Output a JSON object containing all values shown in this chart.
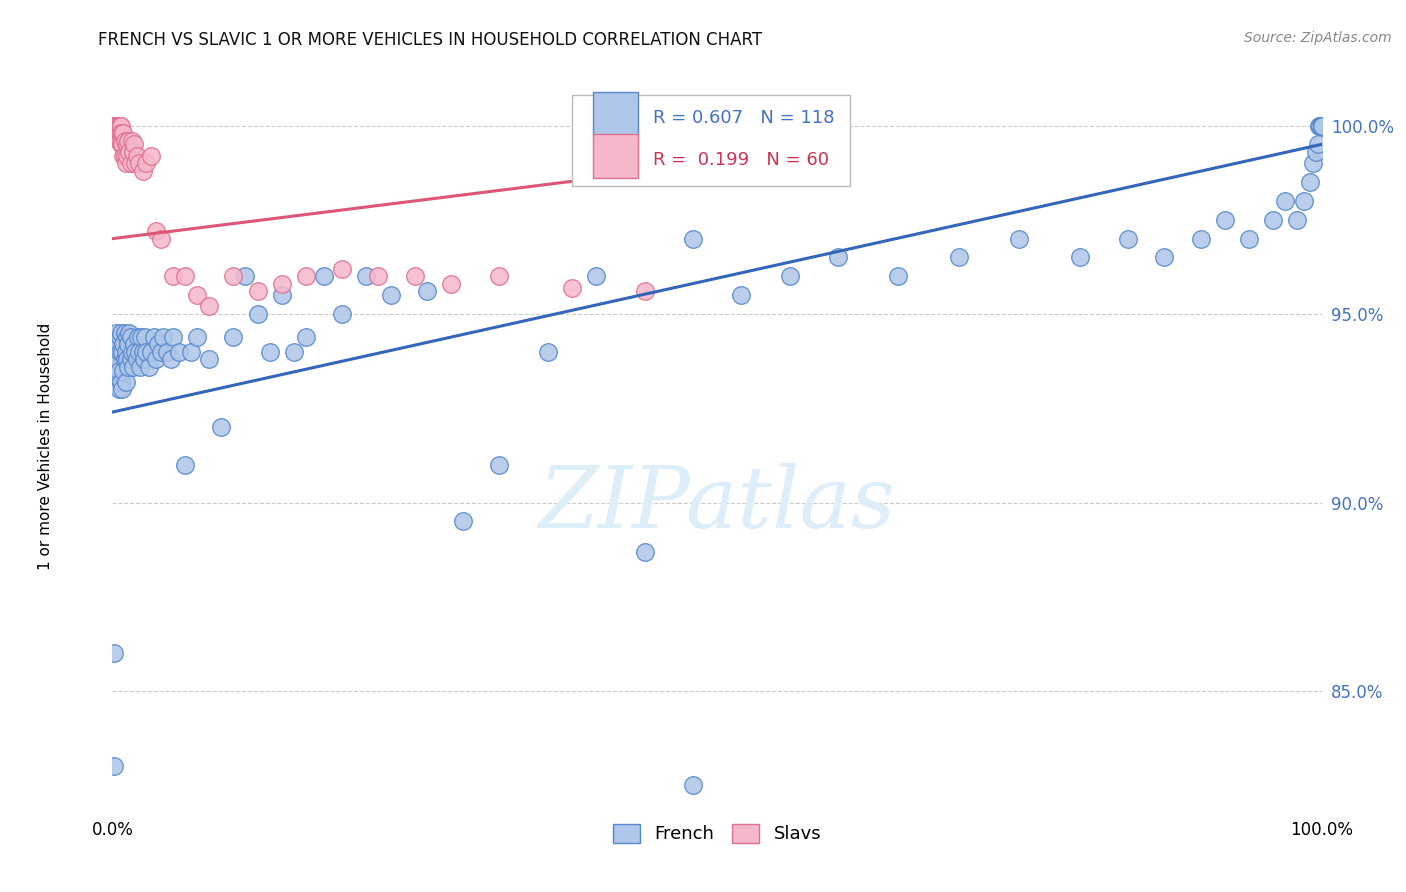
{
  "title": "FRENCH VS SLAVIC 1 OR MORE VEHICLES IN HOUSEHOLD CORRELATION CHART",
  "source": "Source: ZipAtlas.com",
  "ylabel": "1 or more Vehicles in Household",
  "ytick_labels": [
    "85.0%",
    "90.0%",
    "95.0%",
    "100.0%"
  ],
  "ytick_values": [
    0.85,
    0.9,
    0.95,
    1.0
  ],
  "xlim": [
    0.0,
    1.0
  ],
  "ylim": [
    0.818,
    1.012
  ],
  "legend_french": "French",
  "legend_slavs": "Slavs",
  "R_french": 0.607,
  "N_french": 118,
  "R_slavs": 0.199,
  "N_slavs": 60,
  "french_face_color": "#aec6e8",
  "slavs_face_color": "#f5b8ca",
  "french_edge_color": "#5588cc",
  "slavs_edge_color": "#e07090",
  "french_line_color": "#3366bb",
  "slavs_line_color": "#dd5577",
  "watermark_text": "ZIPatlas",
  "watermark_color": "#ddeef8",
  "bg_color": "#ffffff",
  "grid_color": "#cccccc",
  "ytick_color": "#4472c4",
  "title_color": "#111111",
  "source_color": "#888888",
  "legend_R_color_french": "#4472c4",
  "legend_R_color_slavs": "#cc3355",
  "french_x": [
    0.001,
    0.001,
    0.002,
    0.002,
    0.003,
    0.003,
    0.004,
    0.004,
    0.005,
    0.005,
    0.006,
    0.006,
    0.007,
    0.007,
    0.008,
    0.008,
    0.009,
    0.009,
    0.01,
    0.01,
    0.011,
    0.011,
    0.012,
    0.012,
    0.013,
    0.013,
    0.014,
    0.015,
    0.015,
    0.016,
    0.017,
    0.018,
    0.019,
    0.02,
    0.021,
    0.022,
    0.023,
    0.024,
    0.025,
    0.026,
    0.027,
    0.028,
    0.03,
    0.032,
    0.034,
    0.036,
    0.038,
    0.04,
    0.042,
    0.045,
    0.048,
    0.05,
    0.055,
    0.06,
    0.065,
    0.07,
    0.08,
    0.09,
    0.1,
    0.11,
    0.12,
    0.13,
    0.14,
    0.15,
    0.16,
    0.175,
    0.19,
    0.21,
    0.23,
    0.26,
    0.29,
    0.32,
    0.36,
    0.4,
    0.44,
    0.48,
    0.48,
    0.52,
    0.56,
    0.6,
    0.65,
    0.7,
    0.75,
    0.8,
    0.84,
    0.87,
    0.9,
    0.92,
    0.94,
    0.96,
    0.97,
    0.98,
    0.985,
    0.99,
    0.993,
    0.995,
    0.997,
    0.998,
    0.999,
    1.0,
    1.0,
    1.0,
    1.0,
    1.0,
    1.0,
    1.0,
    1.0,
    1.0,
    1.0,
    1.0,
    1.0,
    1.0,
    1.0,
    1.0,
    1.0,
    1.0,
    1.0,
    1.0
  ],
  "french_y": [
    0.83,
    0.86,
    0.935,
    0.94,
    0.94,
    0.945,
    0.938,
    0.942,
    0.93,
    0.935,
    0.94,
    0.944,
    0.932,
    0.945,
    0.93,
    0.94,
    0.935,
    0.942,
    0.938,
    0.945,
    0.932,
    0.94,
    0.938,
    0.944,
    0.936,
    0.942,
    0.945,
    0.938,
    0.944,
    0.94,
    0.936,
    0.942,
    0.94,
    0.938,
    0.944,
    0.94,
    0.936,
    0.944,
    0.94,
    0.938,
    0.944,
    0.94,
    0.936,
    0.94,
    0.944,
    0.938,
    0.942,
    0.94,
    0.944,
    0.94,
    0.938,
    0.944,
    0.94,
    0.91,
    0.94,
    0.944,
    0.938,
    0.92,
    0.944,
    0.96,
    0.95,
    0.94,
    0.955,
    0.94,
    0.944,
    0.96,
    0.95,
    0.96,
    0.955,
    0.956,
    0.895,
    0.91,
    0.94,
    0.96,
    0.887,
    0.825,
    0.97,
    0.955,
    0.96,
    0.965,
    0.96,
    0.965,
    0.97,
    0.965,
    0.97,
    0.965,
    0.97,
    0.975,
    0.97,
    0.975,
    0.98,
    0.975,
    0.98,
    0.985,
    0.99,
    0.993,
    0.995,
    1.0,
    1.0,
    1.0,
    1.0,
    1.0,
    1.0,
    1.0,
    1.0,
    1.0,
    1.0,
    1.0,
    1.0,
    1.0,
    1.0,
    1.0,
    1.0,
    1.0,
    1.0,
    1.0,
    1.0,
    1.0
  ],
  "slavs_x": [
    0.001,
    0.001,
    0.001,
    0.002,
    0.002,
    0.002,
    0.002,
    0.003,
    0.003,
    0.003,
    0.004,
    0.004,
    0.004,
    0.005,
    0.005,
    0.005,
    0.006,
    0.006,
    0.006,
    0.007,
    0.007,
    0.007,
    0.008,
    0.008,
    0.009,
    0.009,
    0.01,
    0.01,
    0.011,
    0.012,
    0.012,
    0.013,
    0.014,
    0.015,
    0.016,
    0.017,
    0.018,
    0.019,
    0.02,
    0.022,
    0.025,
    0.028,
    0.032,
    0.036,
    0.04,
    0.05,
    0.06,
    0.07,
    0.08,
    0.1,
    0.12,
    0.14,
    0.16,
    0.19,
    0.22,
    0.25,
    0.28,
    0.32,
    0.38,
    0.44
  ],
  "slavs_y": [
    1.0,
    1.0,
    1.0,
    1.0,
    1.0,
    1.0,
    1.0,
    1.0,
    1.0,
    1.0,
    1.0,
    1.0,
    0.998,
    1.0,
    0.998,
    0.996,
    1.0,
    0.998,
    0.996,
    1.0,
    0.998,
    0.995,
    0.998,
    0.995,
    0.998,
    0.992,
    0.996,
    0.992,
    0.99,
    0.995,
    0.992,
    0.996,
    0.993,
    0.99,
    0.996,
    0.993,
    0.995,
    0.99,
    0.992,
    0.99,
    0.988,
    0.99,
    0.992,
    0.972,
    0.97,
    0.96,
    0.96,
    0.955,
    0.952,
    0.96,
    0.956,
    0.958,
    0.96,
    0.962,
    0.96,
    0.96,
    0.958,
    0.96,
    0.957,
    0.956
  ],
  "french_line_x0": 0.0,
  "french_line_y0": 0.924,
  "french_line_x1": 1.0,
  "french_line_y1": 0.995,
  "slavs_line_x0": 0.0,
  "slavs_line_y0": 0.97,
  "slavs_line_x1": 0.45,
  "slavs_line_y1": 0.988
}
